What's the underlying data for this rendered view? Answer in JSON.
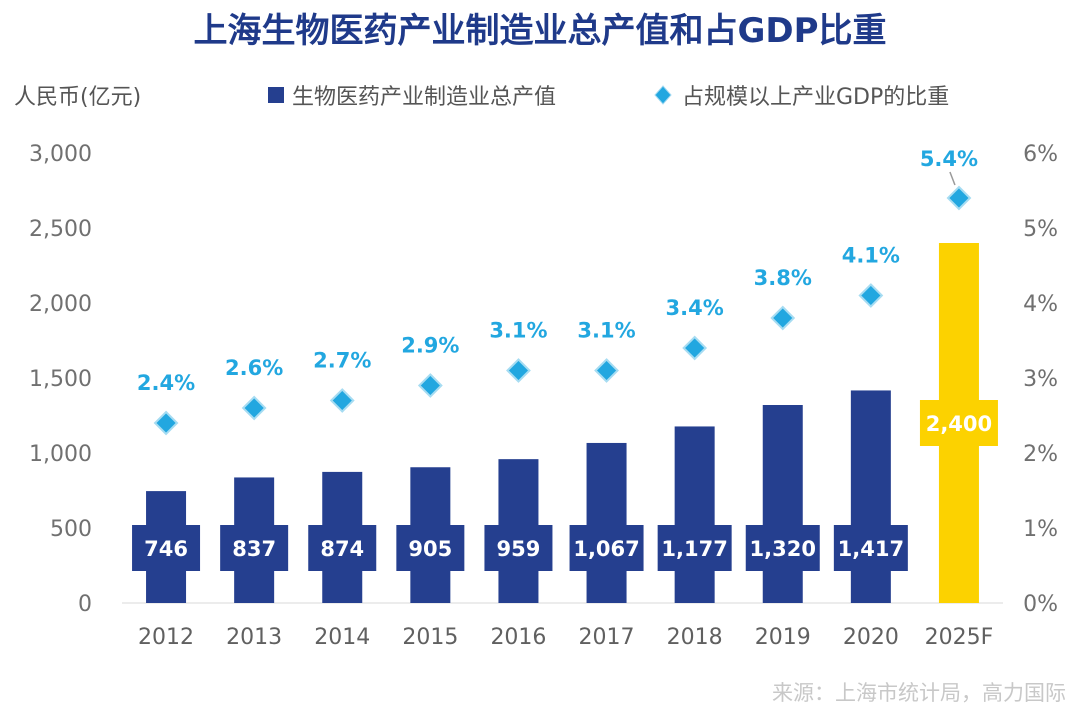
{
  "chart_data": {
    "type": "bar",
    "title": "上海生物医药产业制造业总产值和占GDP比重",
    "ylabel": "人民币(亿元)",
    "categories": [
      "2012",
      "2013",
      "2014",
      "2015",
      "2016",
      "2017",
      "2018",
      "2019",
      "2020",
      "2025F"
    ],
    "series": [
      {
        "name": "生物医药产业制造业总产值",
        "axis": "left",
        "kind": "bar",
        "color": "#253f8f",
        "forecast_color": "#fcd200",
        "values": [
          746,
          837,
          874,
          905,
          959,
          1067,
          1177,
          1320,
          1417,
          2400
        ],
        "labels": [
          "746",
          "837",
          "874",
          "905",
          "959",
          "1,067",
          "1,177",
          "1,320",
          "1,417",
          "2,400"
        ]
      },
      {
        "name": "占规模以上产业GDP的比重",
        "axis": "right",
        "kind": "scatter",
        "marker": "diamond",
        "color": "#22a7e0",
        "values": [
          2.4,
          2.6,
          2.7,
          2.9,
          3.1,
          3.1,
          3.4,
          3.8,
          4.1,
          5.4
        ],
        "labels": [
          "2.4%",
          "2.6%",
          "2.7%",
          "2.9%",
          "3.1%",
          "3.1%",
          "3.4%",
          "3.8%",
          "4.1%",
          "5.4%"
        ]
      }
    ],
    "y_left": {
      "min": 0,
      "max": 3000,
      "step": 500,
      "ticks": [
        "0",
        "500",
        "1,000",
        "1,500",
        "2,000",
        "2,500",
        "3,000"
      ]
    },
    "y_right": {
      "min": 0,
      "max": 6,
      "step": 1,
      "ticks": [
        "0%",
        "1%",
        "2%",
        "3%",
        "4%",
        "5%",
        "6%"
      ]
    },
    "grid": false,
    "legend": "top"
  },
  "source": "来源：上海市统计局，高力国际"
}
